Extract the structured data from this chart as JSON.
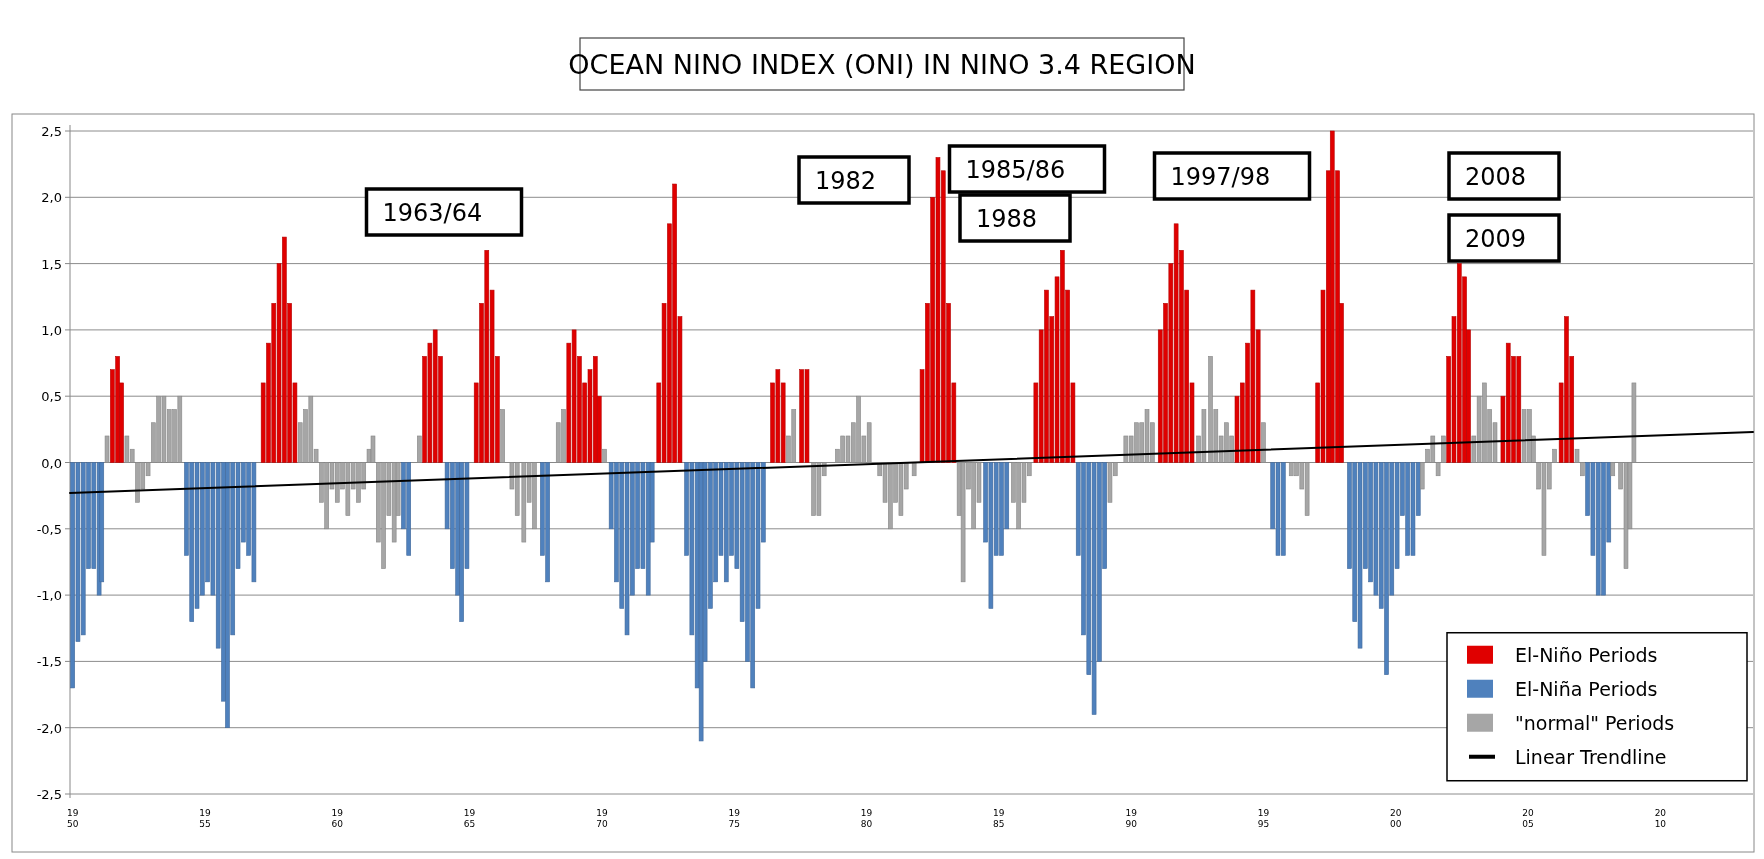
{
  "chart_data": {
    "type": "bar",
    "title": "OCEAN NINO INDEX (ONI) IN NINO 3.4 REGION",
    "xlim": [
      1949.9,
      2013.5
    ],
    "xticks": [
      1950,
      1955,
      1960,
      1965,
      1970,
      1975,
      1980,
      1985,
      1990,
      1995,
      2000,
      2005,
      2010
    ],
    "ylim": [
      -2.5,
      2.5
    ],
    "yticks": [
      {
        "value": -2.5,
        "label": "-2,5"
      },
      {
        "value": -2,
        "label": "-2,0"
      },
      {
        "value": -1.5,
        "label": "-1,5"
      },
      {
        "value": -1,
        "label": "-1,0"
      },
      {
        "value": -0.5,
        "label": "-0,5"
      },
      {
        "value": 0,
        "label": "0,0"
      },
      {
        "value": 0.5,
        "label": "0,5"
      },
      {
        "value": 1,
        "label": "1,0"
      },
      {
        "value": 1.5,
        "label": "1,5"
      },
      {
        "value": 2,
        "label": "2,0"
      },
      {
        "value": 2.5,
        "label": "2,5"
      }
    ],
    "grid": "y",
    "legend": "bottom right",
    "series": [
      {
        "name": "El-Niño Periods",
        "color": "#e00000",
        "x": [
          1951.5,
          1951.7,
          1951.85,
          1957.2,
          1957.4,
          1957.6,
          1957.8,
          1958.0,
          1958.2,
          1958.4,
          1963.3,
          1963.5,
          1963.7,
          1963.9,
          1965.25,
          1965.45,
          1965.65,
          1965.85,
          1966.05,
          1968.75,
          1968.95,
          1969.15,
          1969.35,
          1969.55,
          1969.75,
          1969.9,
          1972.15,
          1972.35,
          1972.55,
          1972.75,
          1972.95,
          1976.45,
          1976.65,
          1976.85,
          1977.55,
          1977.75,
          1982.1,
          1982.3,
          1982.5,
          1982.7,
          1982.9,
          1983.1,
          1983.3,
          1986.4,
          1986.6,
          1986.8,
          1987.0,
          1987.2,
          1987.4,
          1987.6,
          1987.8,
          1991.1,
          1991.3,
          1991.5,
          1991.7,
          1991.9,
          1992.1,
          1992.3,
          1994.0,
          1994.2,
          1994.4,
          1994.6,
          1994.8,
          1997.05,
          1997.25,
          1997.45,
          1997.6,
          1997.8,
          1997.95,
          2002.0,
          2002.2,
          2002.4,
          2002.6,
          2002.75,
          2004.05,
          2004.25,
          2004.45,
          2004.65,
          2006.25,
          2006.45,
          2006.65
        ],
        "values": [
          0.7,
          0.8,
          0.6,
          0.6,
          0.9,
          1.2,
          1.5,
          1.7,
          1.2,
          0.6,
          0.8,
          0.9,
          1.0,
          0.8,
          0.6,
          1.2,
          1.6,
          1.3,
          0.8,
          0.9,
          1.0,
          0.8,
          0.6,
          0.7,
          0.8,
          0.5,
          0.6,
          1.2,
          1.8,
          2.1,
          1.1,
          0.6,
          0.7,
          0.6,
          0.7,
          0.7,
          0.7,
          1.2,
          2.0,
          2.3,
          2.2,
          1.2,
          0.6,
          0.6,
          1.0,
          1.3,
          1.1,
          1.4,
          1.6,
          1.3,
          0.6,
          1.0,
          1.2,
          1.5,
          1.8,
          1.6,
          1.3,
          0.6,
          0.5,
          0.6,
          0.9,
          1.3,
          1.0,
          0.6,
          1.3,
          2.2,
          2.5,
          2.2,
          1.2,
          0.8,
          1.1,
          1.5,
          1.4,
          1.0,
          0.5,
          0.9,
          0.8,
          0.8,
          0.6,
          1.1,
          0.8
        ]
      },
      {
        "name": "El-Niña Periods",
        "color": "#4f81bd",
        "x": [
          1950.0,
          1950.2,
          1950.4,
          1950.6,
          1950.8,
          1951.0,
          1951.1,
          1954.3,
          1954.5,
          1954.7,
          1954.9,
          1955.1,
          1955.3,
          1955.5,
          1955.7,
          1955.85,
          1956.05,
          1956.25,
          1956.45,
          1956.65,
          1956.85,
          1962.5,
          1962.7,
          1964.15,
          1964.35,
          1964.55,
          1964.7,
          1964.9,
          1967.75,
          1967.95,
          1970.35,
          1970.55,
          1970.75,
          1970.95,
          1971.15,
          1971.35,
          1971.55,
          1971.75,
          1971.9,
          1973.2,
          1973.4,
          1973.6,
          1973.75,
          1973.9,
          1974.1,
          1974.3,
          1974.5,
          1974.7,
          1974.9,
          1975.1,
          1975.3,
          1975.5,
          1975.7,
          1975.9,
          1976.1,
          1984.5,
          1984.7,
          1984.9,
          1985.1,
          1985.3,
          1988.0,
          1988.2,
          1988.4,
          1988.6,
          1988.8,
          1989.0,
          1995.35,
          1995.55,
          1995.75,
          1998.25,
          1998.45,
          1998.65,
          1998.85,
          1999.05,
          1999.25,
          1999.45,
          1999.65,
          1999.85,
          2000.05,
          2000.25,
          2000.45,
          2000.65,
          2000.85,
          2007.25,
          2007.45,
          2007.65,
          2007.85,
          2008.05
        ],
        "values": [
          -1.7,
          -1.35,
          -1.3,
          -0.8,
          -0.8,
          -1.0,
          -0.9,
          -0.7,
          -1.2,
          -1.1,
          -1.0,
          -0.9,
          -1.0,
          -1.4,
          -1.8,
          -2.0,
          -1.3,
          -0.8,
          -0.6,
          -0.7,
          -0.9,
          -0.5,
          -0.7,
          -0.5,
          -0.8,
          -1.0,
          -1.2,
          -0.8,
          -0.7,
          -0.9,
          -0.5,
          -0.9,
          -1.1,
          -1.3,
          -1.0,
          -0.8,
          -0.8,
          -1.0,
          -0.6,
          -0.7,
          -1.3,
          -1.7,
          -2.1,
          -1.5,
          -1.1,
          -0.9,
          -0.7,
          -0.9,
          -0.7,
          -0.8,
          -1.2,
          -1.5,
          -1.7,
          -1.1,
          -0.6,
          -0.6,
          -1.1,
          -0.7,
          -0.7,
          -0.5,
          -0.7,
          -1.3,
          -1.6,
          -1.9,
          -1.5,
          -0.8,
          -0.5,
          -0.7,
          -0.7,
          -0.8,
          -1.2,
          -1.4,
          -0.8,
          -0.9,
          -1.0,
          -1.1,
          -1.6,
          -1.0,
          -0.8,
          -0.4,
          -0.7,
          -0.7,
          -0.4,
          -0.4,
          -0.7,
          -1.0,
          -1.0,
          -0.6
        ]
      },
      {
        "name": "\"normal\" Periods",
        "color": "#a6a6a6",
        "x": [
          1951.3,
          1952.05,
          1952.25,
          1952.45,
          1952.65,
          1952.85,
          1953.05,
          1953.25,
          1953.45,
          1953.65,
          1953.85,
          1954.05,
          1958.6,
          1958.8,
          1959.0,
          1959.2,
          1959.4,
          1959.6,
          1959.8,
          1960.0,
          1960.2,
          1960.4,
          1960.6,
          1960.8,
          1961.0,
          1961.2,
          1961.35,
          1961.55,
          1961.75,
          1961.95,
          1962.15,
          1962.3,
          1963.1,
          1966.25,
          1966.6,
          1966.8,
          1967.05,
          1967.25,
          1967.45,
          1968.35,
          1968.55,
          1970.1,
          1977.05,
          1977.25,
          1978.0,
          1978.2,
          1978.4,
          1978.9,
          1979.1,
          1979.3,
          1979.5,
          1979.7,
          1979.9,
          1980.1,
          1980.5,
          1980.7,
          1980.9,
          1981.1,
          1981.3,
          1981.5,
          1981.8,
          1983.5,
          1983.65,
          1983.85,
          1984.05,
          1984.25,
          1985.55,
          1985.75,
          1985.95,
          1986.15,
          1989.2,
          1989.4,
          1989.8,
          1990.0,
          1990.2,
          1990.4,
          1990.6,
          1990.8,
          1992.55,
          1992.75,
          1993.0,
          1993.2,
          1993.4,
          1993.6,
          1993.8,
          1995.0,
          1996.05,
          1996.25,
          1996.45,
          1996.65,
          2001.0,
          2001.2,
          2001.4,
          2001.6,
          2001.8,
          2002.95,
          2003.15,
          2003.35,
          2003.55,
          2003.75,
          2004.85,
          2005.05,
          2005.2,
          2005.4,
          2005.6,
          2005.8,
          2006.0,
          2006.85,
          2007.05,
          2008.2,
          2008.5,
          2008.7,
          2008.85,
          2009.0
        ],
        "values": [
          0.2,
          0.2,
          0.1,
          -0.3,
          -0.2,
          -0.1,
          0.3,
          0.5,
          0.5,
          0.4,
          0.4,
          0.5,
          0.3,
          0.4,
          0.5,
          0.1,
          -0.3,
          -0.5,
          -0.2,
          -0.3,
          -0.2,
          -0.4,
          -0.2,
          -0.3,
          -0.2,
          0.1,
          0.2,
          -0.6,
          -0.8,
          -0.4,
          -0.6,
          -0.4,
          0.2,
          0.4,
          -0.2,
          -0.4,
          -0.6,
          -0.3,
          -0.5,
          0.3,
          0.4,
          0.1,
          0.2,
          0.4,
          -0.4,
          -0.4,
          -0.1,
          0.1,
          0.2,
          0.2,
          0.3,
          0.5,
          0.2,
          0.3,
          -0.1,
          -0.3,
          -0.5,
          -0.3,
          -0.4,
          -0.2,
          -0.1,
          -0.4,
          -0.9,
          -0.2,
          -0.5,
          -0.3,
          -0.3,
          -0.5,
          -0.3,
          -0.1,
          -0.3,
          -0.1,
          0.2,
          0.2,
          0.3,
          0.3,
          0.4,
          0.3,
          0.2,
          0.4,
          0.8,
          0.4,
          0.2,
          0.3,
          0.2,
          0.3,
          -0.1,
          -0.1,
          -0.2,
          -0.4,
          -0.2,
          0.1,
          0.2,
          -0.1,
          0.2,
          0.2,
          0.5,
          0.6,
          0.4,
          0.3,
          0.4,
          0.4,
          0.2,
          -0.2,
          -0.7,
          -0.2,
          0.1,
          0.1,
          -0.1,
          -0.1,
          -0.2,
          -0.8,
          -0.5,
          0.6
        ]
      },
      {
        "name": "Linear Trendline",
        "color": "#000000",
        "type": "line",
        "x": [
          1949.9,
          2013.5
        ],
        "values": [
          -0.23,
          0.23
        ]
      }
    ],
    "annotations": [
      "1963/64",
      "1982",
      "1985/86",
      "1988",
      "1997/98",
      "2008",
      "2009"
    ]
  }
}
